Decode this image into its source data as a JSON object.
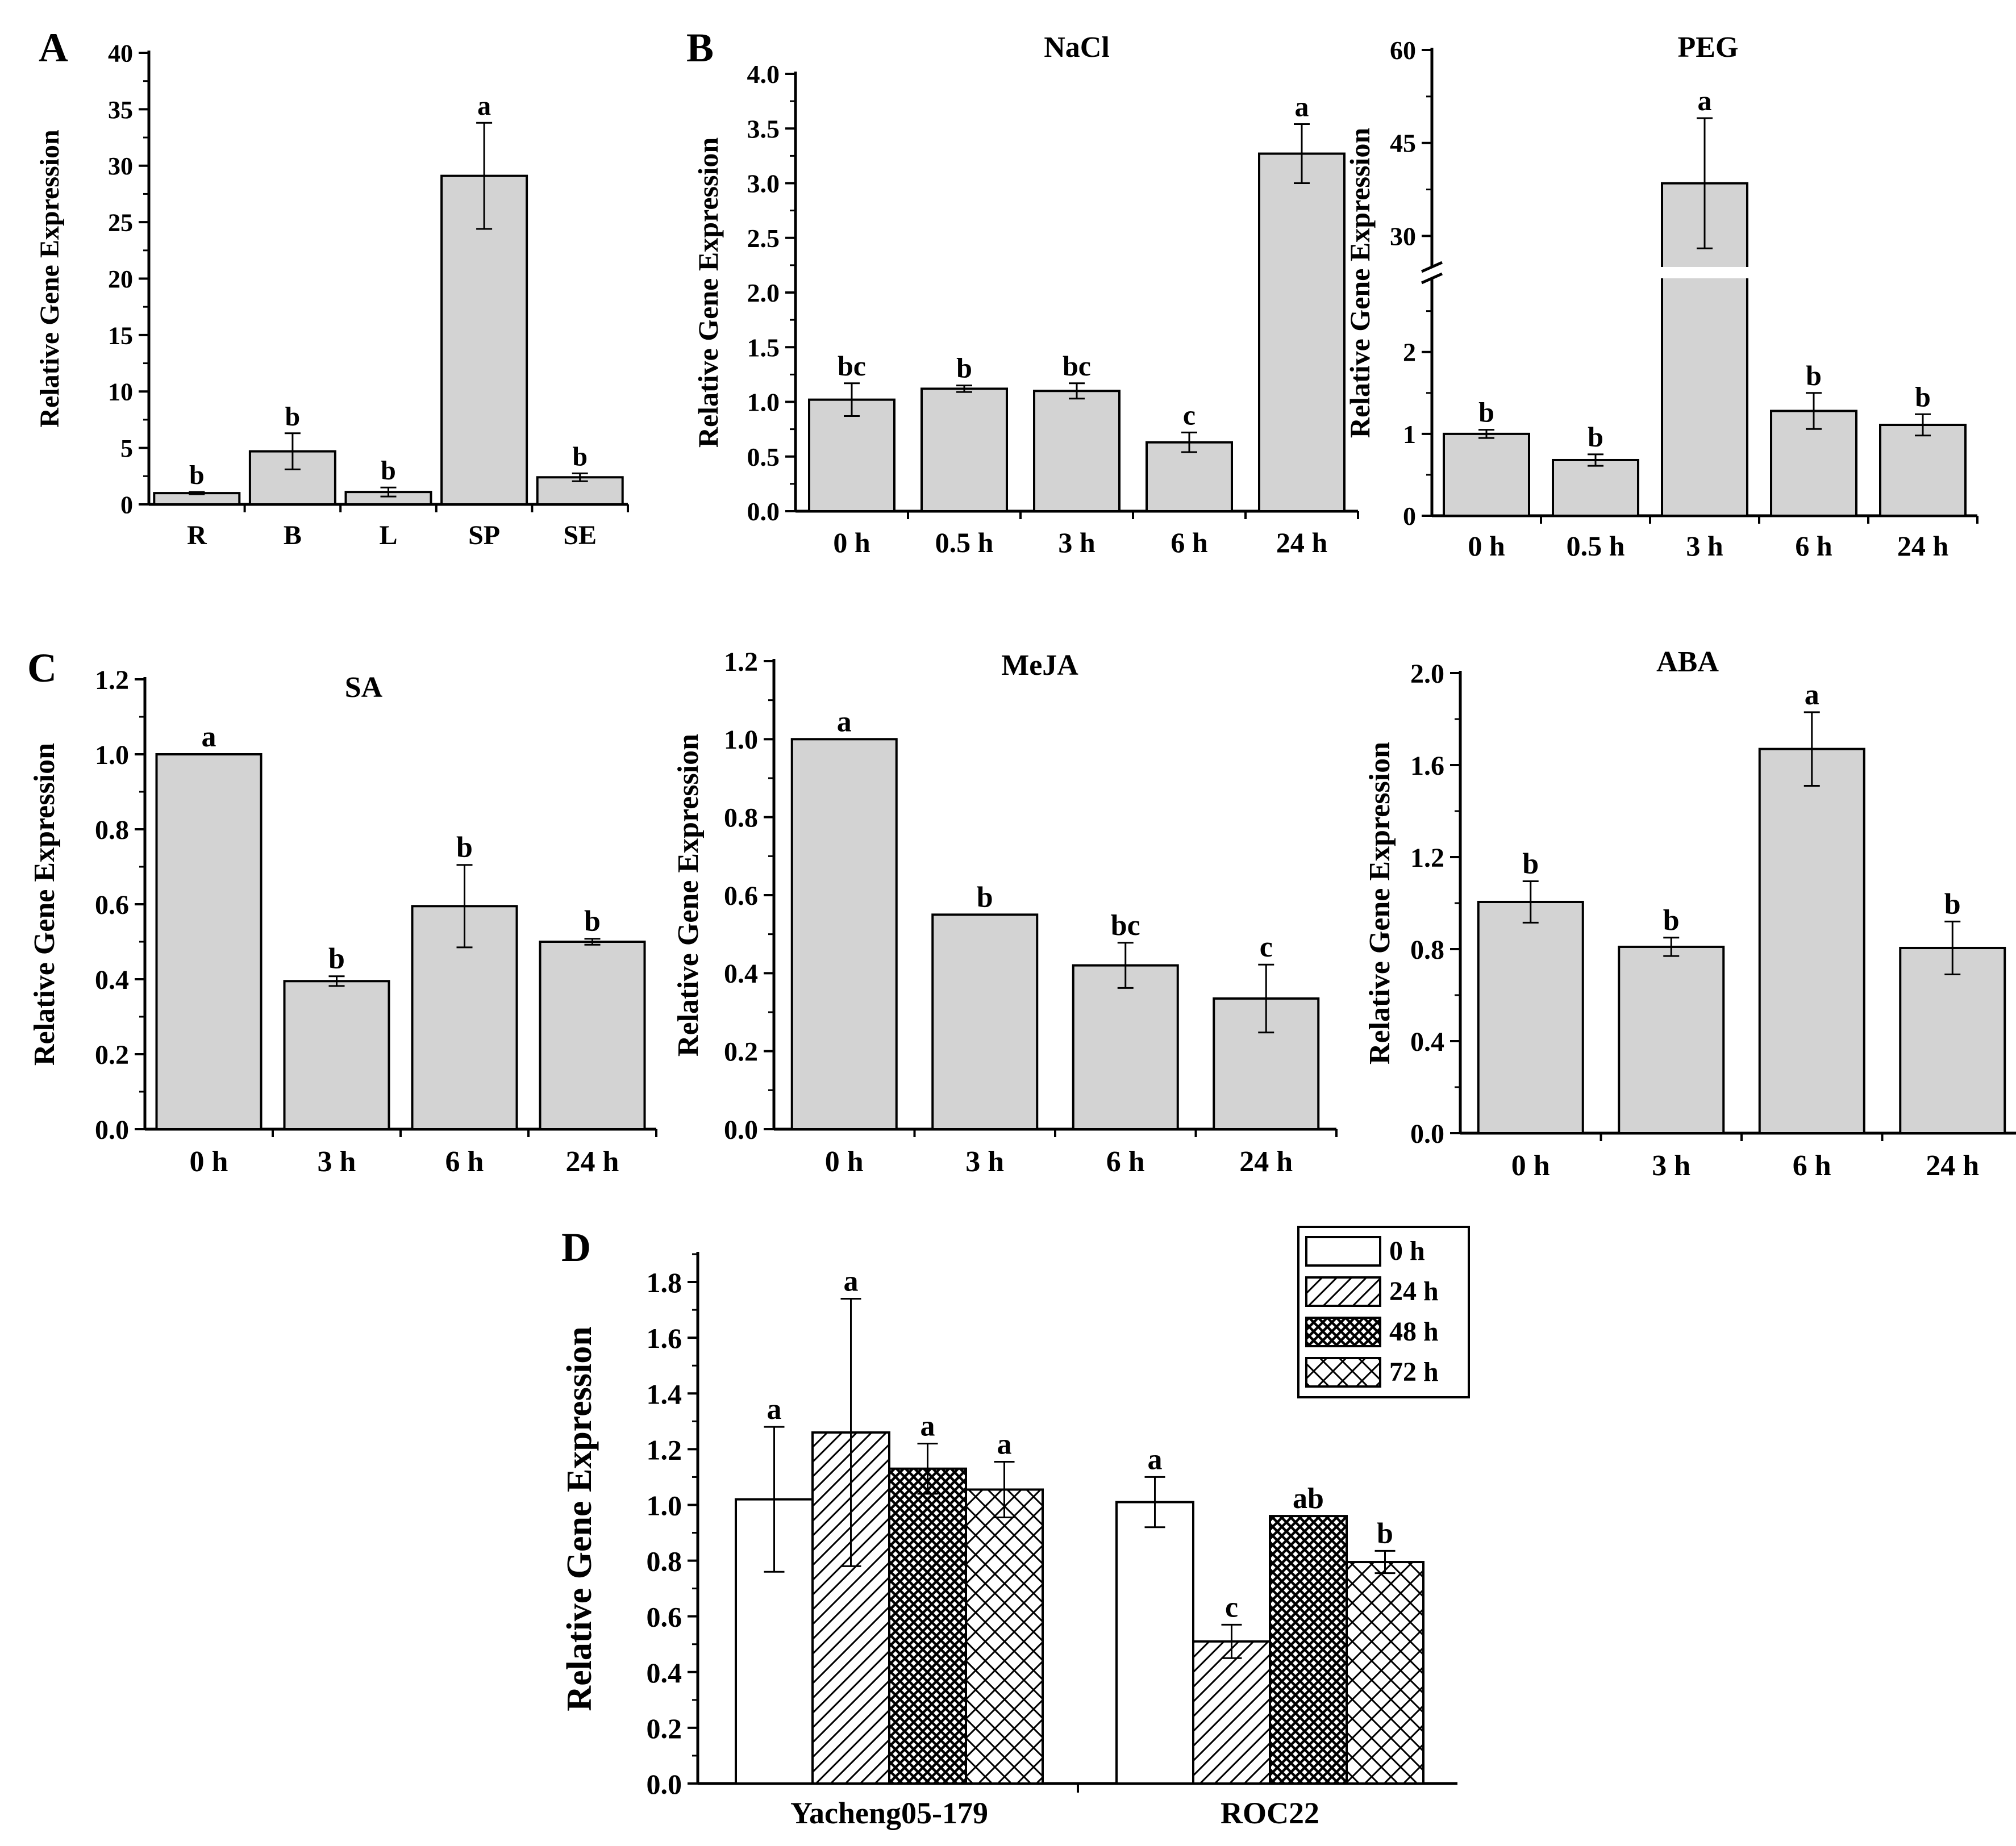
{
  "panel_labels": [
    "A",
    "B",
    "C",
    "D"
  ],
  "ylabel": "Relative Gene Expression",
  "colors": {
    "bar_fill": "#d3d3d3",
    "stroke": "#000000",
    "white": "#ffffff"
  },
  "chart_data": [
    {
      "id": "A",
      "type": "bar",
      "title": "",
      "categories": [
        "R",
        "B",
        "L",
        "SP",
        "SE"
      ],
      "values": [
        1.0,
        4.7,
        1.1,
        29.1,
        2.4
      ],
      "errors": [
        0.1,
        1.6,
        0.4,
        4.7,
        0.35
      ],
      "letters": [
        "b",
        "b",
        "b",
        "a",
        "b"
      ],
      "ylabel": "Relative Gene Expression",
      "ylim": [
        0,
        40
      ],
      "yticks": [
        "0",
        "5",
        "10",
        "15",
        "20",
        "25",
        "30",
        "35",
        "40"
      ]
    },
    {
      "id": "B1",
      "type": "bar",
      "title": "NaCl",
      "categories": [
        "0 h",
        "0.5 h",
        "3 h",
        "6 h",
        "24 h"
      ],
      "values": [
        1.02,
        1.12,
        1.1,
        0.63,
        3.27
      ],
      "errors": [
        0.15,
        0.03,
        0.07,
        0.09,
        0.27
      ],
      "letters": [
        "bc",
        "b",
        "bc",
        "c",
        "a"
      ],
      "ylabel": "Relative Gene Expression",
      "ylim": [
        0,
        4
      ],
      "yticks": [
        "0.0",
        "0.5",
        "1.0",
        "1.5",
        "2.0",
        "2.5",
        "3.0",
        "3.5",
        "4.0"
      ]
    },
    {
      "id": "B2",
      "type": "bar",
      "title": "PEG",
      "categories": [
        "0 h",
        "0.5 h",
        "3 h",
        "6 h",
        "24 h"
      ],
      "values": [
        1.0,
        0.68,
        38.5,
        1.28,
        1.11
      ],
      "errors": [
        0.05,
        0.07,
        10.5,
        0.22,
        0.13
      ],
      "letters": [
        "b",
        "b",
        "a",
        "b",
        "b"
      ],
      "ylabel": "Relative Gene Expression",
      "axis_break": {
        "lower_range": [
          0,
          2.9
        ],
        "upper_range": [
          25,
          60
        ]
      },
      "yticks_lower": [
        "0",
        "1",
        "2"
      ],
      "yticks_upper": [
        "30",
        "45",
        "60"
      ]
    },
    {
      "id": "C1",
      "type": "bar",
      "title": "SA",
      "categories": [
        "0 h",
        "3 h",
        "6 h",
        "24 h"
      ],
      "values": [
        1.0,
        0.395,
        0.595,
        0.5
      ],
      "errors": [
        0.0,
        0.013,
        0.11,
        0.008
      ],
      "letters": [
        "a",
        "b",
        "b",
        "b"
      ],
      "ylabel": "Relative Gene Expression",
      "ylim": [
        0,
        1.2
      ],
      "yticks": [
        "0.0",
        "0.2",
        "0.4",
        "0.6",
        "0.8",
        "1.0",
        "1.2"
      ]
    },
    {
      "id": "C2",
      "type": "bar",
      "title": "MeJA",
      "categories": [
        "0 h",
        "3 h",
        "6 h",
        "24 h"
      ],
      "values": [
        1.0,
        0.55,
        0.42,
        0.335
      ],
      "errors": [
        0.0,
        0.0,
        0.058,
        0.087
      ],
      "letters": [
        "a",
        "b",
        "bc",
        "c"
      ],
      "ylabel": "Relative Gene Expression",
      "ylim": [
        0,
        1.2
      ],
      "yticks": [
        "0.0",
        "0.2",
        "0.4",
        "0.6",
        "0.8",
        "1.0",
        "1.2"
      ]
    },
    {
      "id": "C3",
      "type": "bar",
      "title": "ABA",
      "categories": [
        "0 h",
        "3 h",
        "6 h",
        "24 h"
      ],
      "values": [
        1.005,
        0.81,
        1.67,
        0.805
      ],
      "errors": [
        0.09,
        0.04,
        0.16,
        0.115
      ],
      "letters": [
        "b",
        "b",
        "a",
        "b"
      ],
      "ylabel": "Relative Gene Expression",
      "ylim": [
        0,
        2.0
      ],
      "yticks": [
        "0.0",
        "0.4",
        "0.8",
        "1.2",
        "1.6",
        "2.0"
      ]
    },
    {
      "id": "D",
      "type": "bar",
      "title": "",
      "categories": [
        "Yacheng05-179",
        "ROC22"
      ],
      "series": [
        {
          "name": "0 h",
          "pattern": "none",
          "values": [
            1.02,
            1.01
          ],
          "errors": [
            0.26,
            0.09
          ],
          "letters": [
            "a",
            "a"
          ]
        },
        {
          "name": "24 h",
          "pattern": "diagonal",
          "values": [
            1.26,
            0.51
          ],
          "errors": [
            0.48,
            0.06
          ],
          "letters": [
            "a",
            "c"
          ]
        },
        {
          "name": "48 h",
          "pattern": "dense",
          "values": [
            1.13,
            0.96
          ],
          "errors": [
            0.09,
            0.0
          ],
          "letters": [
            "a",
            "ab"
          ]
        },
        {
          "name": "72 h",
          "pattern": "cross",
          "values": [
            1.055,
            0.795
          ],
          "errors": [
            0.1,
            0.04
          ],
          "letters": [
            "a",
            "b"
          ]
        }
      ],
      "ylabel": "Relative Gene Expression",
      "ylim": [
        0,
        1.9
      ],
      "yticks": [
        "0.0",
        "0.2",
        "0.4",
        "0.6",
        "0.8",
        "1.0",
        "1.2",
        "1.4",
        "1.6",
        "1.8"
      ],
      "legend_position": "top-right"
    }
  ]
}
